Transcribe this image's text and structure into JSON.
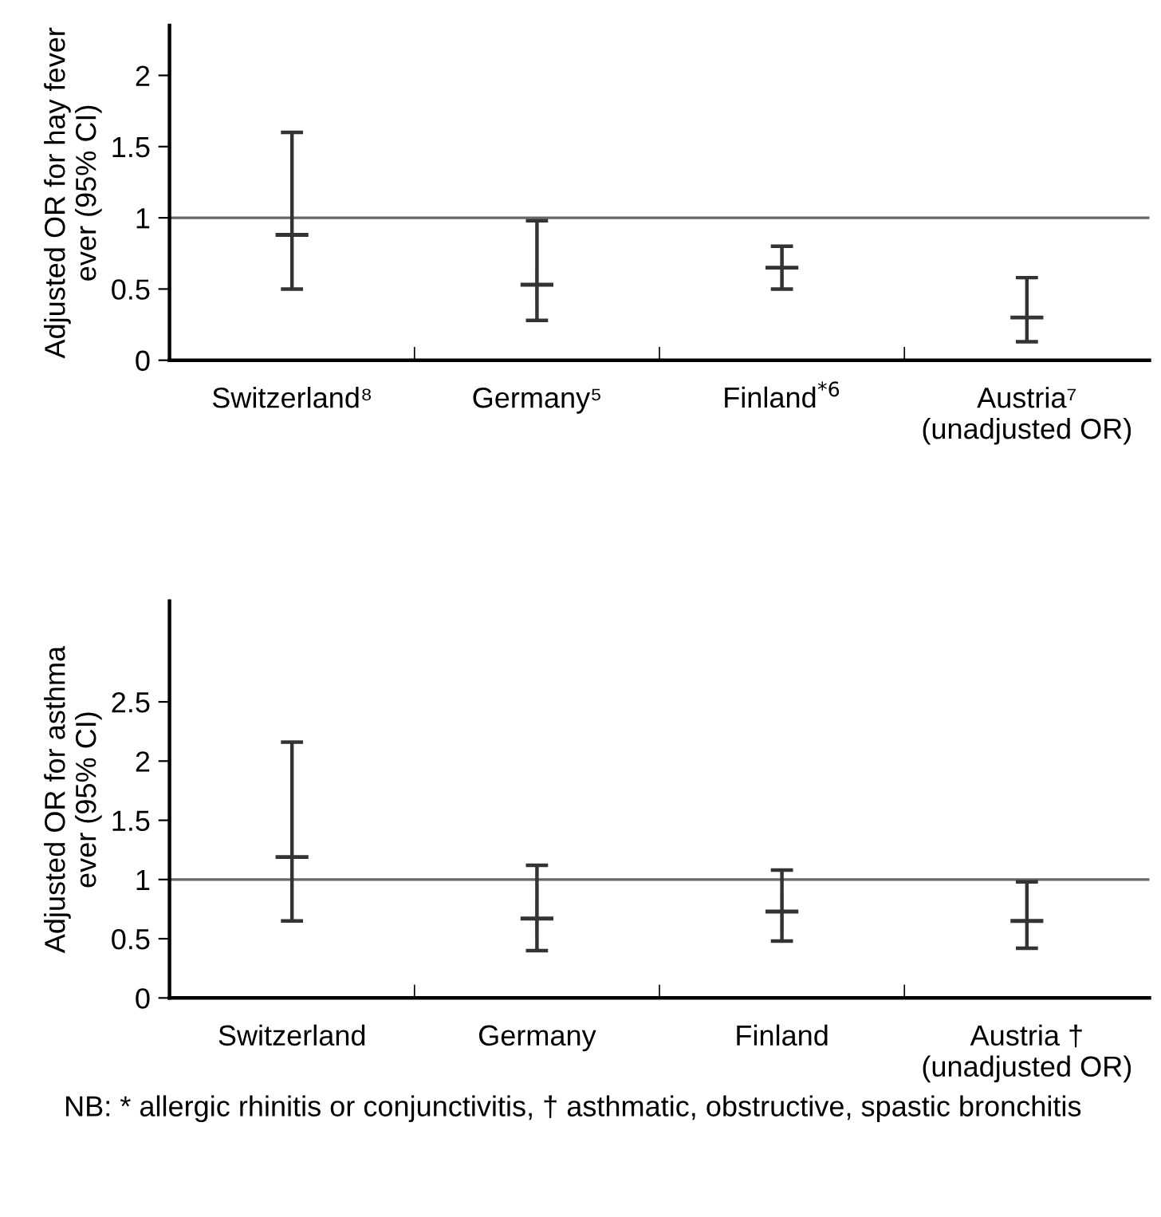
{
  "chart_data": [
    {
      "type": "scatter",
      "ylabel": "Adjusted OR for hay fever\never (95% CI)",
      "categories": [
        "Switzerland⁸",
        "Germany⁵",
        "Finland$^{*6}$",
        "Austria⁷\n(unadjusted OR)"
      ],
      "series": [
        {
          "color": "#333333",
          "values": [
            0.88,
            0.53,
            0.65,
            0.3
          ],
          "errors": [
            [
              0.5,
              1.6
            ],
            [
              0.28,
              0.98
            ],
            [
              0.5,
              0.8
            ],
            [
              0.13,
              0.58
            ]
          ]
        }
      ],
      "ylim": [
        0,
        2.35
      ],
      "yticks": [
        0,
        0.5,
        1,
        1.5,
        2
      ],
      "ref_lines": [
        {
          "axis": "y",
          "value": 1,
          "color": "#666666"
        }
      ],
      "marker": "cross"
    },
    {
      "type": "scatter",
      "ylabel": "Adjusted OR for asthma\never (95% CI)",
      "categories": [
        "Switzerland",
        "Germany",
        "Finland",
        "Austria †\n(unadjusted OR)"
      ],
      "series": [
        {
          "color": "#333333",
          "values": [
            1.19,
            0.67,
            0.73,
            0.65
          ],
          "errors": [
            [
              0.65,
              2.16
            ],
            [
              0.4,
              1.12
            ],
            [
              0.48,
              1.08
            ],
            [
              0.42,
              0.98
            ]
          ]
        }
      ],
      "ylim": [
        0,
        3.35
      ],
      "yticks": [
        0,
        0.5,
        1,
        1.5,
        2,
        2.5
      ],
      "ref_lines": [
        {
          "axis": "y",
          "value": 1,
          "color": "#666666"
        }
      ],
      "marker": "cross",
      "annotations": [
        "NB: * allergic rhinitis or conjunctivitis, † asthmatic, obstructive, spastic bronchitis"
      ]
    }
  ]
}
